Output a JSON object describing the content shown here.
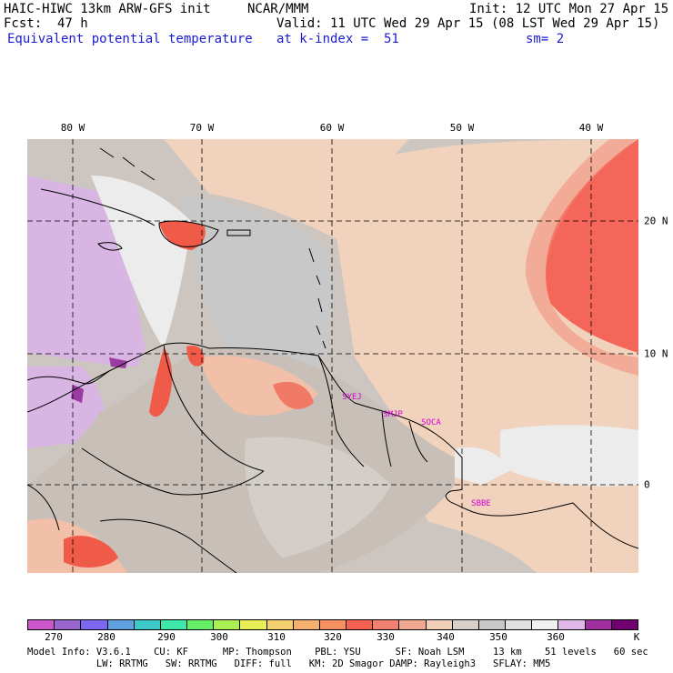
{
  "header": {
    "model_title": "HAIC-HIWC 13km ARW-GFS init",
    "org": "NCAR/MMM",
    "init": "Init: 12 UTC Mon 27 Apr 15",
    "fcst": "Fcst:  47 h",
    "valid": "Valid: 11 UTC Wed 29 Apr 15 (08 LST Wed 29 Apr 15)",
    "field": "Equivalent potential temperature",
    "level": "at k-index =  51",
    "smooth": "sm= 2"
  },
  "map": {
    "lon_labels": [
      "80 W",
      "70 W",
      "60 W",
      "50 W",
      "40 W"
    ],
    "lat_labels": [
      "20 N",
      "10 N",
      "0"
    ],
    "stations": [
      "SYEJ",
      "SMJP",
      "SOCA",
      "SBBE"
    ]
  },
  "colorbar": {
    "colors": [
      "#cc55cc",
      "#9966cc",
      "#7b68ee",
      "#5fa0e0",
      "#3fc8c8",
      "#3ee8a8",
      "#66ee66",
      "#aaf055",
      "#e8f055",
      "#f5d070",
      "#f5b070",
      "#f59060",
      "#f56050",
      "#f08070",
      "#f0a890",
      "#f0d0b8",
      "#d8cfc8",
      "#c8c8c8",
      "#e0e0e0",
      "#f0f0f0",
      "#e0b8e8",
      "#a030a0",
      "#700070"
    ],
    "ticks": [
      "270",
      "280",
      "290",
      "300",
      "310",
      "320",
      "330",
      "340",
      "350",
      "360"
    ],
    "unit": "K"
  },
  "model_info": {
    "line1": "Model Info: V3.6.1    CU: KF      MP: Thompson    PBL: YSU      SF: Noah LSM     13 km    51 levels   60 sec",
    "line2": "            LW: RRTMG   SW: RRTMG   DIFF: full   KM: 2D Smagor DAMP: Rayleigh3   SFLAY: MM5"
  }
}
